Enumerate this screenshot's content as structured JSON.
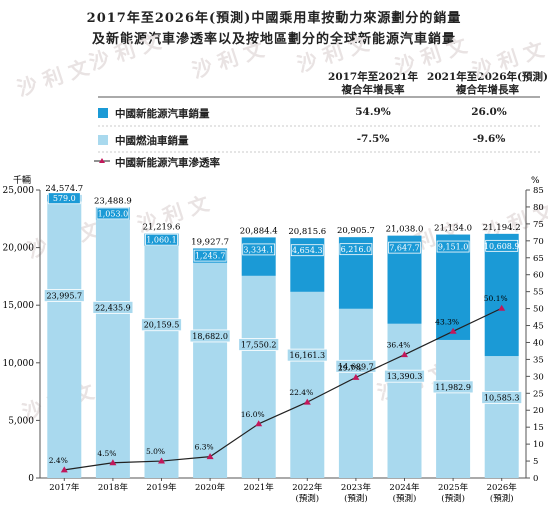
{
  "title_line1": "2017年至2026年(預測)中國乘用車按動力來源劃分的銷量",
  "title_line2": "及新能源汽車滲透率以及按地區劃分的全球新能源汽車銷量",
  "header": {
    "col1": [
      "2017年至2021年",
      "複合年增長率"
    ],
    "col2": [
      "2021年至2026年(預測)",
      "複合年增長率"
    ]
  },
  "legend": [
    {
      "label": "中國新能源汽車銷量",
      "cagr1": "54.9%",
      "cagr2": "26.0%"
    },
    {
      "label": "中國燃油車銷量",
      "cagr1": "-7.5%",
      "cagr2": "-9.6%"
    },
    {
      "label": "中國新能源汽車滲透率"
    }
  ],
  "left_unit": "千輛",
  "right_unit": "%",
  "watermark": "沙 利 文",
  "colors": {
    "nev": "#1b9ad6",
    "ice": "#a9d9ee",
    "line": "#222222",
    "marker": "#c2185b",
    "axis": "#555555"
  },
  "chart_data": {
    "type": "bar",
    "categories": [
      "2017年",
      "2018年",
      "2019年",
      "2020年",
      "2021年",
      "2022年",
      "2023年",
      "2024年",
      "2025年",
      "2026年"
    ],
    "category_notes": [
      "",
      "",
      "",
      "",
      "",
      "(預測)",
      "(預測)",
      "(預測)",
      "(預測)",
      "(預測)"
    ],
    "series": [
      {
        "name": "中國燃油車銷量",
        "values": [
          23995.7,
          22435.9,
          20159.5,
          18682.0,
          17550.2,
          16161.3,
          14689.7,
          13390.3,
          11982.9,
          10585.3
        ],
        "labels": [
          "23,995.7",
          "22,435.9",
          "20,159.5",
          "18,682.0",
          "17,550.2",
          "16,161.3",
          "14,689.7",
          "13,390.3",
          "11,982.9",
          "10,585.3"
        ]
      },
      {
        "name": "中國新能源汽車銷量",
        "values": [
          579.0,
          1053.0,
          1060.1,
          1245.7,
          3334.1,
          4654.3,
          6216.0,
          7647.7,
          9151.0,
          10608.9
        ],
        "labels": [
          "579.0",
          "1,053.0",
          "1,060.1",
          "1,245.7",
          "3,334.1",
          "4,654.3",
          "6,216.0",
          "7,647.7",
          "9,151.0",
          "10,608.9"
        ]
      },
      {
        "name": "中國新能源汽車滲透率",
        "axis": "right",
        "values": [
          2.4,
          4.5,
          5.0,
          6.3,
          16.0,
          22.4,
          29.7,
          36.4,
          43.3,
          50.1
        ],
        "labels": [
          "2.4%",
          "4.5%",
          "5.0%",
          "6.3%",
          "16.0%",
          "22.4%",
          "29.7%",
          "36.4%",
          "43.3%",
          "50.1%"
        ]
      }
    ],
    "totals": [
      "24,574.7",
      "23,488.9",
      "21,219.6",
      "19,927.7",
      "20,884.4",
      "20,815.6",
      "20,905.7",
      "21,038.0",
      "21,134.0",
      "21,194.2"
    ],
    "y_left": {
      "ylim": [
        0,
        25000
      ],
      "ticks": [
        "0",
        "5,000",
        "10,000",
        "15,000",
        "20,000",
        "25,000"
      ],
      "tick_values": [
        0,
        5000,
        10000,
        15000,
        20000,
        25000
      ]
    },
    "y_right": {
      "ylim": [
        0,
        85
      ],
      "tick_values": [
        0,
        5,
        10,
        15,
        20,
        25,
        30,
        35,
        40,
        45,
        50,
        55,
        60,
        65,
        70,
        75,
        80,
        85
      ]
    }
  }
}
